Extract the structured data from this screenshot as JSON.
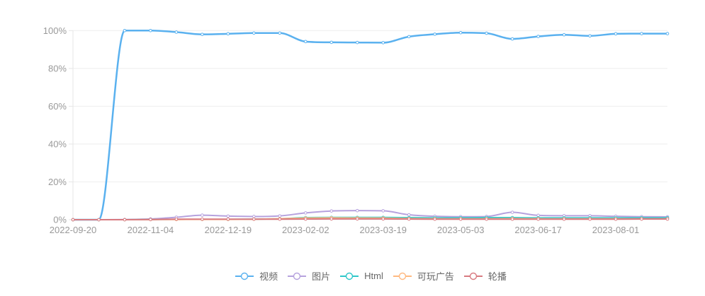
{
  "chart_data": {
    "type": "line",
    "smooth": true,
    "title": "",
    "xlabel": "",
    "ylabel": "",
    "ylim": [
      0,
      100
    ],
    "yticks": [
      0,
      20,
      40,
      60,
      80,
      100
    ],
    "ytick_format": "percent",
    "x": [
      "2022-09-20",
      "2022-10-05",
      "2022-10-20",
      "2022-11-04",
      "2022-11-19",
      "2022-12-04",
      "2022-12-19",
      "2023-01-03",
      "2023-01-18",
      "2023-02-02",
      "2023-02-17",
      "2023-03-04",
      "2023-03-19",
      "2023-04-03",
      "2023-04-18",
      "2023-05-03",
      "2023-05-18",
      "2023-06-02",
      "2023-06-17",
      "2023-07-02",
      "2023-07-17",
      "2023-08-01",
      "2023-08-16",
      "2023-08-31"
    ],
    "x_label_every": 3,
    "x_shown_labels": [
      "2022-09-20",
      "2022-11-04",
      "2022-12-19",
      "2023-02-02",
      "2023-03-19",
      "2023-05-03",
      "2023-06-17",
      "2023-08-01"
    ],
    "grid": true,
    "legend_position": "bottom",
    "series": [
      {
        "name": "视频",
        "color": "#5ab1ef",
        "line_width": 2.5,
        "values": [
          0,
          0,
          100,
          100,
          99.2,
          98.0,
          98.3,
          98.7,
          98.7,
          94.2,
          93.8,
          93.7,
          93.6,
          96.8,
          98.1,
          98.9,
          98.6,
          95.6,
          96.9,
          97.8,
          97.2,
          98.3,
          98.4,
          98.4
        ]
      },
      {
        "name": "图片",
        "color": "#b6a2de",
        "line_width": 2,
        "values": [
          0,
          0,
          0.1,
          0.4,
          1.3,
          2.4,
          1.9,
          1.7,
          2.0,
          3.6,
          4.6,
          4.8,
          4.7,
          2.6,
          1.8,
          1.6,
          1.7,
          3.9,
          2.3,
          2.1,
          2.1,
          1.8,
          1.6,
          1.5
        ]
      },
      {
        "name": "Html",
        "color": "#2ec7c9",
        "line_width": 2,
        "values": [
          0,
          0,
          0,
          0.1,
          0.2,
          0.2,
          0.2,
          0.3,
          0.5,
          1.1,
          1.2,
          1.2,
          1.2,
          1.1,
          1.0,
          1.0,
          1.1,
          1.1,
          1.0,
          1.0,
          1.0,
          1.0,
          1.0,
          1.0
        ]
      },
      {
        "name": "可玩广告",
        "color": "#ffb980",
        "line_width": 2,
        "values": [
          0,
          0,
          0,
          0.05,
          0.1,
          0.15,
          0.15,
          0.25,
          0.5,
          0.9,
          1.0,
          0.9,
          0.85,
          0.6,
          0.5,
          0.45,
          0.5,
          0.55,
          0.5,
          0.45,
          0.45,
          0.45,
          0.45,
          0.45
        ]
      },
      {
        "name": "轮播",
        "color": "#d87a80",
        "line_width": 2,
        "values": [
          0,
          0,
          0,
          0.1,
          0.3,
          0.3,
          0.3,
          0.3,
          0.3,
          0.35,
          0.4,
          0.4,
          0.4,
          0.35,
          0.3,
          0.3,
          0.3,
          0.3,
          0.3,
          0.3,
          0.3,
          0.3,
          0.35,
          0.35
        ]
      }
    ],
    "axis_label_color": "#999999",
    "grid_line_color": "#eeeeee",
    "axis_line_color": "#e6e6e6",
    "legend_text_color": "#666666"
  }
}
